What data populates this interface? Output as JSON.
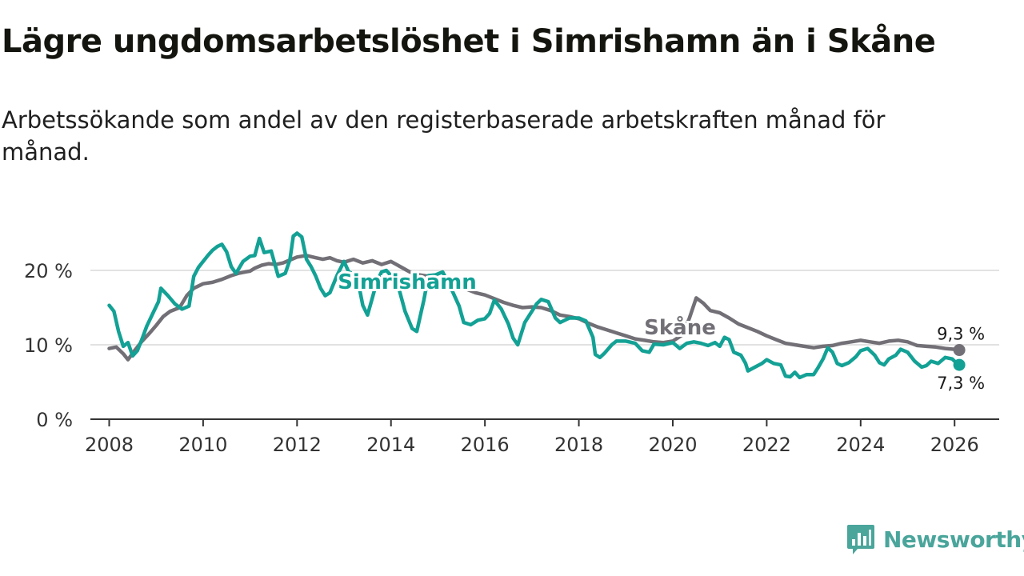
{
  "title": "Lägre ungdomsarbetslöshet i Simrishamn än i Skåne",
  "subtitle": "Arbetssökande som andel av den registerbaserade arbetskraften månad för månad.",
  "colors": {
    "simrishamn": "#13a195",
    "skane": "#727076",
    "grid": "#d9d9d9",
    "axis": "#333333",
    "brand": "#4aa59b"
  },
  "brand": {
    "name": "Newsworthy",
    "icon": "bar-chart-badge-icon"
  },
  "chart_data": {
    "type": "line",
    "xlabel": "",
    "ylabel": "",
    "xlim": [
      2007.6,
      2026.95
    ],
    "ylim": [
      0,
      25
    ],
    "x_ticks": [
      2008,
      2010,
      2012,
      2014,
      2016,
      2018,
      2020,
      2022,
      2024,
      2026
    ],
    "x_tick_labels": [
      "2008",
      "2010",
      "2012",
      "2014",
      "2016",
      "2018",
      "2020",
      "2022",
      "2024",
      "2026"
    ],
    "y_ticks": [
      0,
      10,
      20
    ],
    "y_tick_labels": [
      "0 %",
      "10 %",
      "20 %"
    ],
    "grid": "horizontal",
    "series": [
      {
        "name": "Skåne",
        "label": "Skåne",
        "end_label": "9,3 %",
        "points": [
          [
            2008.0,
            9.5
          ],
          [
            2008.15,
            9.7
          ],
          [
            2008.3,
            8.8
          ],
          [
            2008.4,
            8.0
          ],
          [
            2008.55,
            9.3
          ],
          [
            2008.7,
            10.5
          ],
          [
            2008.85,
            11.5
          ],
          [
            2009.0,
            12.6
          ],
          [
            2009.15,
            13.8
          ],
          [
            2009.3,
            14.5
          ],
          [
            2009.5,
            15.0
          ],
          [
            2009.65,
            16.6
          ],
          [
            2009.8,
            17.6
          ],
          [
            2010.0,
            18.2
          ],
          [
            2010.2,
            18.4
          ],
          [
            2010.4,
            18.8
          ],
          [
            2010.6,
            19.3
          ],
          [
            2010.75,
            19.6
          ],
          [
            2010.9,
            19.8
          ],
          [
            2011.0,
            19.9
          ],
          [
            2011.1,
            20.3
          ],
          [
            2011.25,
            20.7
          ],
          [
            2011.4,
            20.9
          ],
          [
            2011.55,
            20.8
          ],
          [
            2011.7,
            21.0
          ],
          [
            2011.85,
            21.4
          ],
          [
            2012.0,
            21.8
          ],
          [
            2012.2,
            22.0
          ],
          [
            2012.4,
            21.7
          ],
          [
            2012.55,
            21.5
          ],
          [
            2012.7,
            21.7
          ],
          [
            2012.85,
            21.3
          ],
          [
            2013.0,
            21.1
          ],
          [
            2013.2,
            21.5
          ],
          [
            2013.4,
            21.0
          ],
          [
            2013.6,
            21.3
          ],
          [
            2013.8,
            20.8
          ],
          [
            2014.0,
            21.2
          ],
          [
            2014.2,
            20.5
          ],
          [
            2014.4,
            19.8
          ],
          [
            2014.6,
            19.4
          ],
          [
            2014.8,
            19.2
          ],
          [
            2015.0,
            18.8
          ],
          [
            2015.2,
            18.3
          ],
          [
            2015.4,
            17.6
          ],
          [
            2015.6,
            17.5
          ],
          [
            2015.8,
            17.0
          ],
          [
            2016.0,
            16.7
          ],
          [
            2016.2,
            16.2
          ],
          [
            2016.4,
            15.7
          ],
          [
            2016.6,
            15.3
          ],
          [
            2016.8,
            15.0
          ],
          [
            2017.0,
            15.1
          ],
          [
            2017.2,
            15.0
          ],
          [
            2017.4,
            14.6
          ],
          [
            2017.6,
            14.0
          ],
          [
            2017.8,
            13.8
          ],
          [
            2018.0,
            13.5
          ],
          [
            2018.2,
            12.9
          ],
          [
            2018.4,
            12.4
          ],
          [
            2018.6,
            12.0
          ],
          [
            2018.8,
            11.6
          ],
          [
            2019.0,
            11.2
          ],
          [
            2019.2,
            10.8
          ],
          [
            2019.4,
            10.6
          ],
          [
            2019.6,
            10.4
          ],
          [
            2019.8,
            10.3
          ],
          [
            2020.0,
            10.5
          ],
          [
            2020.2,
            11.3
          ],
          [
            2020.35,
            13.5
          ],
          [
            2020.5,
            16.3
          ],
          [
            2020.65,
            15.6
          ],
          [
            2020.8,
            14.6
          ],
          [
            2021.0,
            14.3
          ],
          [
            2021.2,
            13.6
          ],
          [
            2021.4,
            12.8
          ],
          [
            2021.6,
            12.3
          ],
          [
            2021.8,
            11.8
          ],
          [
            2022.0,
            11.2
          ],
          [
            2022.2,
            10.7
          ],
          [
            2022.4,
            10.2
          ],
          [
            2022.6,
            10.0
          ],
          [
            2022.8,
            9.8
          ],
          [
            2023.0,
            9.6
          ],
          [
            2023.2,
            9.8
          ],
          [
            2023.4,
            9.9
          ],
          [
            2023.6,
            10.2
          ],
          [
            2023.8,
            10.4
          ],
          [
            2024.0,
            10.6
          ],
          [
            2024.2,
            10.4
          ],
          [
            2024.4,
            10.2
          ],
          [
            2024.6,
            10.5
          ],
          [
            2024.8,
            10.6
          ],
          [
            2025.0,
            10.4
          ],
          [
            2025.2,
            9.9
          ],
          [
            2025.4,
            9.8
          ],
          [
            2025.6,
            9.7
          ],
          [
            2025.8,
            9.5
          ],
          [
            2026.0,
            9.4
          ],
          [
            2026.1,
            9.3
          ]
        ]
      },
      {
        "name": "Simrishamn",
        "label": "Simrishamn",
        "end_label": "7,3 %",
        "points": [
          [
            2008.0,
            15.3
          ],
          [
            2008.1,
            14.5
          ],
          [
            2008.2,
            11.8
          ],
          [
            2008.3,
            9.8
          ],
          [
            2008.4,
            10.3
          ],
          [
            2008.5,
            8.5
          ],
          [
            2008.6,
            9.2
          ],
          [
            2008.7,
            10.8
          ],
          [
            2008.8,
            12.5
          ],
          [
            2008.95,
            14.5
          ],
          [
            2009.05,
            15.8
          ],
          [
            2009.1,
            17.6
          ],
          [
            2009.25,
            16.6
          ],
          [
            2009.4,
            15.5
          ],
          [
            2009.55,
            14.8
          ],
          [
            2009.7,
            15.2
          ],
          [
            2009.8,
            19.2
          ],
          [
            2009.9,
            20.4
          ],
          [
            2010.0,
            21.2
          ],
          [
            2010.1,
            22.0
          ],
          [
            2010.2,
            22.7
          ],
          [
            2010.3,
            23.2
          ],
          [
            2010.4,
            23.5
          ],
          [
            2010.5,
            22.5
          ],
          [
            2010.6,
            20.5
          ],
          [
            2010.7,
            19.6
          ],
          [
            2010.85,
            21.2
          ],
          [
            2011.0,
            21.9
          ],
          [
            2011.1,
            22.0
          ],
          [
            2011.2,
            24.3
          ],
          [
            2011.3,
            22.4
          ],
          [
            2011.45,
            22.6
          ],
          [
            2011.6,
            19.2
          ],
          [
            2011.75,
            19.6
          ],
          [
            2011.85,
            21.5
          ],
          [
            2011.92,
            24.6
          ],
          [
            2012.0,
            25.0
          ],
          [
            2012.1,
            24.5
          ],
          [
            2012.2,
            21.5
          ],
          [
            2012.3,
            20.5
          ],
          [
            2012.4,
            19.2
          ],
          [
            2012.5,
            17.6
          ],
          [
            2012.6,
            16.6
          ],
          [
            2012.7,
            17.0
          ],
          [
            2012.85,
            19.3
          ],
          [
            2013.0,
            21.2
          ],
          [
            2013.1,
            19.8
          ],
          [
            2013.2,
            19.5
          ],
          [
            2013.3,
            18.5
          ],
          [
            2013.4,
            15.3
          ],
          [
            2013.5,
            14.0
          ],
          [
            2013.6,
            16.2
          ],
          [
            2013.7,
            18.5
          ],
          [
            2013.8,
            19.8
          ],
          [
            2013.9,
            20.0
          ],
          [
            2014.0,
            19.3
          ],
          [
            2014.15,
            18.0
          ],
          [
            2014.3,
            14.5
          ],
          [
            2014.45,
            12.2
          ],
          [
            2014.55,
            11.8
          ],
          [
            2014.7,
            16.0
          ],
          [
            2014.8,
            19.3
          ],
          [
            2014.95,
            19.4
          ],
          [
            2015.1,
            19.8
          ],
          [
            2015.3,
            17.3
          ],
          [
            2015.45,
            15.2
          ],
          [
            2015.55,
            13.0
          ],
          [
            2015.7,
            12.7
          ],
          [
            2015.85,
            13.3
          ],
          [
            2016.0,
            13.5
          ],
          [
            2016.1,
            14.2
          ],
          [
            2016.2,
            16.0
          ],
          [
            2016.35,
            14.8
          ],
          [
            2016.5,
            12.8
          ],
          [
            2016.6,
            10.9
          ],
          [
            2016.7,
            10.0
          ],
          [
            2016.85,
            13.0
          ],
          [
            2017.0,
            14.5
          ],
          [
            2017.1,
            15.5
          ],
          [
            2017.2,
            16.1
          ],
          [
            2017.35,
            15.8
          ],
          [
            2017.5,
            13.6
          ],
          [
            2017.6,
            13.0
          ],
          [
            2017.8,
            13.6
          ],
          [
            2018.0,
            13.6
          ],
          [
            2018.15,
            13.2
          ],
          [
            2018.3,
            11.0
          ],
          [
            2018.35,
            8.7
          ],
          [
            2018.45,
            8.3
          ],
          [
            2018.55,
            8.9
          ],
          [
            2018.7,
            10.0
          ],
          [
            2018.8,
            10.5
          ],
          [
            2019.0,
            10.5
          ],
          [
            2019.2,
            10.2
          ],
          [
            2019.35,
            9.2
          ],
          [
            2019.5,
            9.0
          ],
          [
            2019.6,
            10.1
          ],
          [
            2019.8,
            10.0
          ],
          [
            2020.0,
            10.3
          ],
          [
            2020.15,
            9.5
          ],
          [
            2020.3,
            10.2
          ],
          [
            2020.45,
            10.4
          ],
          [
            2020.6,
            10.2
          ],
          [
            2020.75,
            9.9
          ],
          [
            2020.9,
            10.3
          ],
          [
            2021.0,
            9.8
          ],
          [
            2021.1,
            11.0
          ],
          [
            2021.2,
            10.7
          ],
          [
            2021.3,
            9.0
          ],
          [
            2021.45,
            8.6
          ],
          [
            2021.55,
            7.5
          ],
          [
            2021.6,
            6.5
          ],
          [
            2021.75,
            7.0
          ],
          [
            2021.9,
            7.5
          ],
          [
            2022.0,
            8.0
          ],
          [
            2022.15,
            7.5
          ],
          [
            2022.3,
            7.3
          ],
          [
            2022.4,
            5.8
          ],
          [
            2022.5,
            5.7
          ],
          [
            2022.6,
            6.3
          ],
          [
            2022.7,
            5.6
          ],
          [
            2022.85,
            6.0
          ],
          [
            2023.0,
            6.0
          ],
          [
            2023.1,
            7.0
          ],
          [
            2023.2,
            8.1
          ],
          [
            2023.3,
            9.6
          ],
          [
            2023.4,
            9.0
          ],
          [
            2023.5,
            7.5
          ],
          [
            2023.6,
            7.2
          ],
          [
            2023.75,
            7.6
          ],
          [
            2023.9,
            8.4
          ],
          [
            2024.0,
            9.2
          ],
          [
            2024.15,
            9.5
          ],
          [
            2024.3,
            8.6
          ],
          [
            2024.4,
            7.6
          ],
          [
            2024.5,
            7.3
          ],
          [
            2024.6,
            8.1
          ],
          [
            2024.75,
            8.6
          ],
          [
            2024.85,
            9.4
          ],
          [
            2025.0,
            9.0
          ],
          [
            2025.15,
            7.8
          ],
          [
            2025.3,
            7.0
          ],
          [
            2025.4,
            7.2
          ],
          [
            2025.5,
            7.8
          ],
          [
            2025.65,
            7.5
          ],
          [
            2025.8,
            8.3
          ],
          [
            2025.95,
            8.1
          ],
          [
            2026.0,
            7.8
          ],
          [
            2026.1,
            7.3
          ]
        ]
      }
    ]
  }
}
